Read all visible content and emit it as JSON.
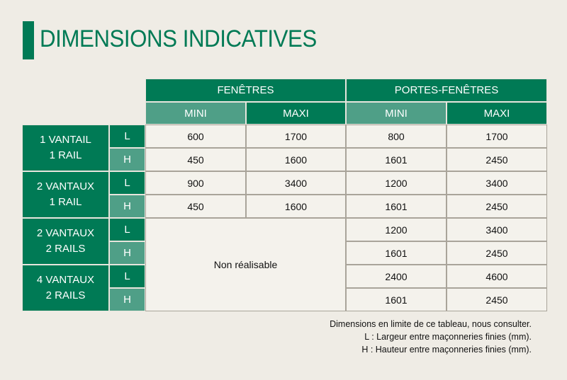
{
  "title": "DIMENSIONS INDICATIVES",
  "brand_colors": {
    "dark_green": "#007a55",
    "light_green": "#4f9f87"
  },
  "headers": {
    "groups": [
      "FENÊTRES",
      "PORTES-FENÊTRES"
    ],
    "subs": [
      "MINI",
      "MAXI",
      "MINI",
      "MAXI"
    ]
  },
  "row_groups": [
    {
      "label_line1": "1 VANTAIL",
      "label_line2": "1 RAIL",
      "rows": [
        {
          "dim": "L",
          "values": [
            "600",
            "1700",
            "800",
            "1700"
          ]
        },
        {
          "dim": "H",
          "values": [
            "450",
            "1600",
            "1601",
            "2450"
          ]
        }
      ]
    },
    {
      "label_line1": "2 VANTAUX",
      "label_line2": "1 RAIL",
      "rows": [
        {
          "dim": "L",
          "values": [
            "900",
            "3400",
            "1200",
            "3400"
          ]
        },
        {
          "dim": "H",
          "values": [
            "450",
            "1600",
            "1601",
            "2450"
          ]
        }
      ]
    },
    {
      "label_line1": "2 VANTAUX",
      "label_line2": "2 RAILS",
      "rows": [
        {
          "dim": "L",
          "values": [
            "",
            "",
            "1200",
            "3400"
          ]
        },
        {
          "dim": "H",
          "values": [
            "",
            "",
            "1601",
            "2450"
          ]
        }
      ]
    },
    {
      "label_line1": "4 VANTAUX",
      "label_line2": "2 RAILS",
      "rows": [
        {
          "dim": "L",
          "values": [
            "",
            "",
            "2400",
            "4600"
          ]
        },
        {
          "dim": "H",
          "values": [
            "",
            "",
            "1601",
            "2450"
          ]
        }
      ]
    }
  ],
  "not_feasible_label": "Non réalisable",
  "notes": [
    "Dimensions en limite de ce tableau, nous consulter.",
    "L : Largeur entre maçonneries finies (mm).",
    "H : Hauteur entre maçonneries finies (mm)."
  ]
}
